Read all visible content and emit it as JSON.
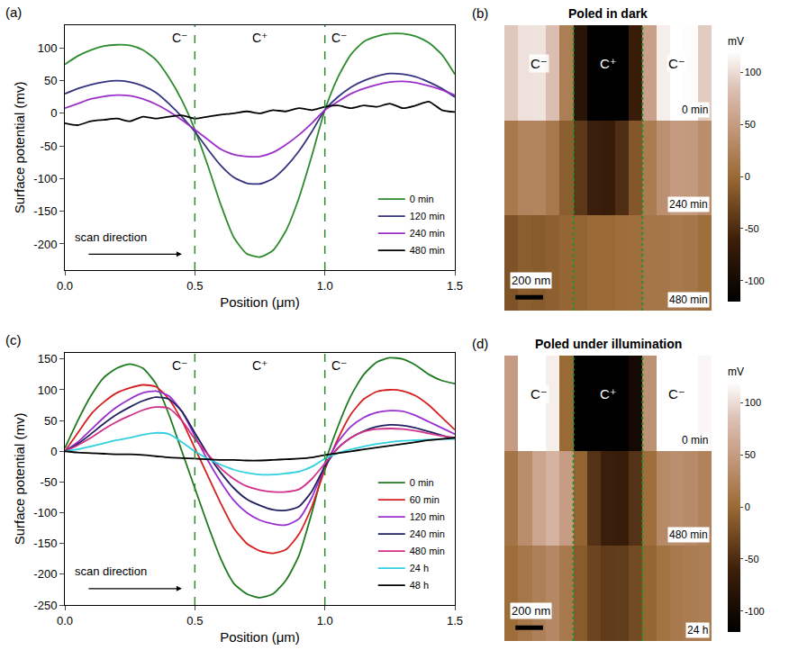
{
  "chart_data": [
    {
      "type": "line",
      "label": "(a)",
      "x_label": "Position (μm)",
      "y_label": "Surface potential (mv)",
      "x": [
        0,
        0.05,
        0.1,
        0.15,
        0.2,
        0.25,
        0.3,
        0.35,
        0.4,
        0.45,
        0.5,
        0.55,
        0.6,
        0.65,
        0.7,
        0.75,
        0.8,
        0.85,
        0.9,
        0.95,
        1,
        1.05,
        1.1,
        1.15,
        1.2,
        1.25,
        1.3,
        1.35,
        1.4,
        1.45,
        1.5
      ],
      "xlim": [
        0,
        1.5
      ],
      "xticks": [
        {
          "value": 0,
          "label": "0.0"
        },
        {
          "value": 0.5,
          "label": "0.5"
        },
        {
          "value": 1,
          "label": "1.0"
        },
        {
          "value": 1.5,
          "label": "1.5"
        }
      ],
      "ylim": [
        -240,
        135
      ],
      "yticks": [
        -200,
        -150,
        -100,
        -50,
        0,
        50,
        100
      ],
      "grid": false,
      "legend": "lower right",
      "boundaries": [
        0.5,
        1.0
      ],
      "regions": [
        "C⁻",
        "C⁺",
        "C⁻"
      ],
      "annotations": [
        "scan direction"
      ],
      "series": [
        {
          "name": "0 min",
          "color": "#2e8b2e",
          "values": [
            75,
            88,
            97,
            103,
            105,
            104,
            97,
            82,
            55,
            20,
            -25,
            -80,
            -140,
            -190,
            -215,
            -220,
            -210,
            -180,
            -130,
            -65,
            5,
            55,
            90,
            110,
            118,
            122,
            122,
            118,
            108,
            90,
            60
          ]
        },
        {
          "name": "120 min",
          "color": "#33337f",
          "values": [
            30,
            38,
            44,
            48,
            50,
            48,
            42,
            32,
            15,
            -5,
            -28,
            -55,
            -80,
            -98,
            -107,
            -108,
            -100,
            -82,
            -58,
            -28,
            5,
            25,
            40,
            50,
            57,
            61,
            60,
            56,
            48,
            38,
            25
          ]
        },
        {
          "name": "240 min",
          "color": "#9b30c8",
          "values": [
            8,
            15,
            22,
            26,
            28,
            27,
            22,
            14,
            3,
            -10,
            -25,
            -40,
            -55,
            -63,
            -66,
            -66,
            -60,
            -48,
            -33,
            -15,
            5,
            18,
            30,
            38,
            44,
            48,
            49,
            47,
            42,
            36,
            28
          ]
        },
        {
          "name": "480 min",
          "color": "#000000",
          "values": [
            -15,
            -18,
            -12,
            -10,
            -8,
            -12,
            -5,
            -8,
            -5,
            -3,
            -8,
            -5,
            -2,
            0,
            3,
            0,
            5,
            3,
            8,
            5,
            10,
            12,
            8,
            12,
            10,
            15,
            8,
            12,
            18,
            5,
            2
          ]
        }
      ]
    },
    {
      "type": "heatmap",
      "label": "(b)",
      "title": "Poled in dark",
      "x": [
        0.05,
        0.15,
        0.25,
        0.35,
        0.45,
        0.55,
        0.65,
        0.75,
        0.85,
        0.95,
        1.05,
        1.15,
        1.25,
        1.35,
        1.45
      ],
      "xlim": [
        0,
        1.5
      ],
      "rows": [
        "0 min",
        "240 min",
        "480 min"
      ],
      "z": [
        [
          88,
          103,
          104,
          82,
          20,
          -80,
          -190,
          -220,
          -180,
          -65,
          55,
          110,
          122,
          118,
          90
        ],
        [
          15,
          26,
          27,
          14,
          -10,
          -40,
          -63,
          -66,
          -48,
          -15,
          18,
          38,
          48,
          47,
          36
        ],
        [
          -18,
          -10,
          -12,
          -8,
          -3,
          -5,
          0,
          0,
          3,
          5,
          12,
          12,
          15,
          12,
          5
        ]
      ],
      "boundaries": [
        0.5,
        1.0
      ],
      "regions": [
        "C⁻",
        "C⁺",
        "C⁻"
      ],
      "scale_bar": {
        "label": "200 nm",
        "length": 0.2
      },
      "colorbar": {
        "title": "mV",
        "range": [
          -120,
          120
        ],
        "ticks": [
          -100,
          -50,
          0,
          50,
          100
        ]
      },
      "tick_labels": false
    },
    {
      "type": "line",
      "label": "(c)",
      "x_label": "Position (μm)",
      "y_label": "Surface potential (mv)",
      "x": [
        0,
        0.05,
        0.1,
        0.15,
        0.2,
        0.25,
        0.3,
        0.35,
        0.4,
        0.45,
        0.5,
        0.55,
        0.6,
        0.65,
        0.7,
        0.75,
        0.8,
        0.85,
        0.9,
        0.95,
        1,
        1.05,
        1.1,
        1.15,
        1.2,
        1.25,
        1.3,
        1.35,
        1.4,
        1.45,
        1.5
      ],
      "xlim": [
        0,
        1.5
      ],
      "xticks": [
        {
          "value": 0,
          "label": "0.0"
        },
        {
          "value": 0.5,
          "label": "0.5"
        },
        {
          "value": 1,
          "label": "1.0"
        },
        {
          "value": 1.5,
          "label": "1.5"
        }
      ],
      "ylim": [
        -250,
        160
      ],
      "yticks": [
        -250,
        -200,
        -150,
        -100,
        -50,
        0,
        50,
        100,
        150
      ],
      "grid": false,
      "legend": "lower right",
      "boundaries": [
        0.5,
        1.0
      ],
      "regions": [
        "C⁻",
        "C⁺",
        "C⁻"
      ],
      "annotations": [
        "scan direction"
      ],
      "series": [
        {
          "name": "0 min",
          "color": "#1f7a1f",
          "values": [
            5,
            50,
            90,
            120,
            135,
            142,
            135,
            110,
            60,
            0,
            -60,
            -120,
            -175,
            -215,
            -232,
            -238,
            -232,
            -210,
            -170,
            -100,
            -20,
            40,
            90,
            125,
            145,
            152,
            150,
            140,
            125,
            115,
            110
          ]
        },
        {
          "name": "60 min",
          "color": "#d42020",
          "values": [
            0,
            30,
            60,
            80,
            95,
            103,
            108,
            105,
            85,
            50,
            5,
            -40,
            -85,
            -125,
            -150,
            -162,
            -166,
            -160,
            -135,
            -90,
            -30,
            20,
            60,
            85,
            97,
            100,
            98,
            90,
            75,
            55,
            35
          ]
        },
        {
          "name": "120 min",
          "color": "#9b30d0",
          "values": [
            0,
            15,
            35,
            55,
            72,
            85,
            95,
            98,
            90,
            65,
            25,
            -15,
            -50,
            -80,
            -100,
            -112,
            -118,
            -120,
            -110,
            -75,
            -25,
            15,
            40,
            55,
            63,
            66,
            65,
            58,
            48,
            38,
            28
          ]
        },
        {
          "name": "240 min",
          "color": "#202060",
          "values": [
            0,
            12,
            28,
            45,
            60,
            72,
            82,
            88,
            85,
            65,
            30,
            -5,
            -35,
            -60,
            -78,
            -88,
            -95,
            -96,
            -90,
            -65,
            -25,
            5,
            22,
            33,
            40,
            43,
            42,
            38,
            32,
            26,
            20
          ]
        },
        {
          "name": "480 min",
          "color": "#d0308a",
          "values": [
            0,
            10,
            22,
            36,
            48,
            58,
            67,
            72,
            70,
            50,
            20,
            -5,
            -28,
            -45,
            -57,
            -63,
            -66,
            -66,
            -62,
            -45,
            -20,
            5,
            22,
            32,
            36,
            37,
            36,
            33,
            29,
            25,
            22
          ]
        },
        {
          "name": "24 h",
          "color": "#30d0e0",
          "values": [
            0,
            3,
            8,
            13,
            18,
            22,
            27,
            30,
            28,
            15,
            0,
            -12,
            -22,
            -30,
            -35,
            -38,
            -38,
            -36,
            -33,
            -25,
            -12,
            -3,
            3,
            8,
            12,
            15,
            17,
            18,
            19,
            20,
            20
          ]
        },
        {
          "name": "48 h",
          "color": "#000000",
          "values": [
            0,
            -2,
            -3,
            -4,
            -5,
            -5,
            -6,
            -8,
            -10,
            -11,
            -12,
            -13,
            -14,
            -14,
            -15,
            -15,
            -14,
            -13,
            -12,
            -10,
            -6,
            -3,
            0,
            3,
            6,
            9,
            12,
            15,
            18,
            20,
            22
          ]
        }
      ]
    },
    {
      "type": "heatmap",
      "label": "(d)",
      "title": "Poled under illumination",
      "x": [
        0.05,
        0.15,
        0.25,
        0.35,
        0.45,
        0.55,
        0.65,
        0.75,
        0.85,
        0.95,
        1.05,
        1.15,
        1.25,
        1.35,
        1.45
      ],
      "xlim": [
        0,
        1.5
      ],
      "rows": [
        "0 min",
        "480 min",
        "24 h"
      ],
      "z": [
        [
          50,
          120,
          142,
          110,
          0,
          -120,
          -215,
          -238,
          -210,
          -100,
          40,
          125,
          152,
          140,
          115
        ],
        [
          10,
          36,
          58,
          72,
          50,
          -5,
          -45,
          -63,
          -66,
          -45,
          5,
          32,
          37,
          33,
          25
        ],
        [
          3,
          13,
          22,
          30,
          15,
          -12,
          -30,
          -38,
          -36,
          -25,
          -3,
          8,
          15,
          18,
          20
        ]
      ],
      "boundaries": [
        0.5,
        1.0
      ],
      "regions": [
        "C⁻",
        "C⁺",
        "C⁻"
      ],
      "scale_bar": {
        "label": "200 nm",
        "length": 0.2
      },
      "colorbar": {
        "title": "mV",
        "range": [
          -120,
          120
        ],
        "ticks": [
          -100,
          -50,
          0,
          50,
          100
        ]
      },
      "tick_labels": false
    }
  ]
}
